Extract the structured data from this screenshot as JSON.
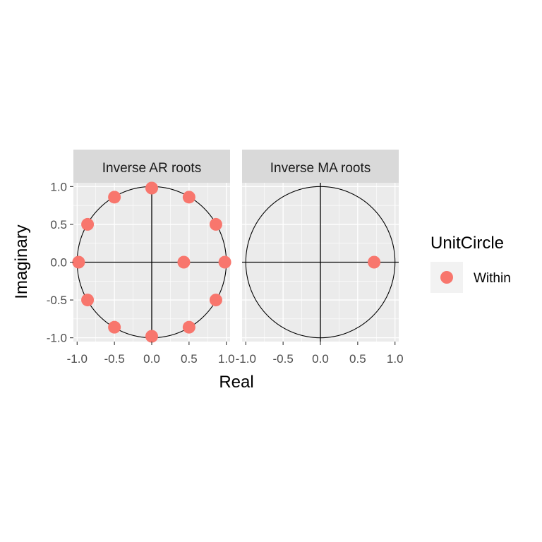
{
  "chart_data": {
    "type": "scatter",
    "xlabel": "Real",
    "ylabel": "Imaginary",
    "xlim": [
      -1.05,
      1.05
    ],
    "ylim": [
      -1.05,
      1.05
    ],
    "x_ticks": [
      "-1.0",
      "-0.5",
      "0.0",
      "0.5",
      "1.0"
    ],
    "y_ticks": [
      "-1.0",
      "-0.5",
      "0.0",
      "0.5",
      "1.0"
    ],
    "grid": true,
    "unit_circle": true,
    "legend": {
      "title": "UnitCircle",
      "position": "right",
      "entries": [
        {
          "label": "Within",
          "color": "#F8766D"
        }
      ]
    },
    "panels": [
      {
        "title": "Inverse AR roots",
        "points": [
          {
            "x": 0.0,
            "y": 0.98
          },
          {
            "x": 0.5,
            "y": 0.86
          },
          {
            "x": -0.5,
            "y": 0.86
          },
          {
            "x": 0.86,
            "y": 0.5
          },
          {
            "x": -0.86,
            "y": 0.5
          },
          {
            "x": 0.98,
            "y": 0.0
          },
          {
            "x": -0.98,
            "y": 0.0
          },
          {
            "x": 0.43,
            "y": 0.0
          },
          {
            "x": 0.86,
            "y": -0.5
          },
          {
            "x": -0.86,
            "y": -0.5
          },
          {
            "x": 0.5,
            "y": -0.86
          },
          {
            "x": -0.5,
            "y": -0.86
          },
          {
            "x": 0.0,
            "y": -0.98
          }
        ]
      },
      {
        "title": "Inverse MA roots",
        "points": [
          {
            "x": 0.72,
            "y": 0.0
          }
        ]
      }
    ],
    "colors": {
      "point": "#F8766D",
      "panel_bg": "#EBEBEB",
      "strip_bg": "#D9D9D9",
      "grid": "#FFFFFF"
    }
  }
}
